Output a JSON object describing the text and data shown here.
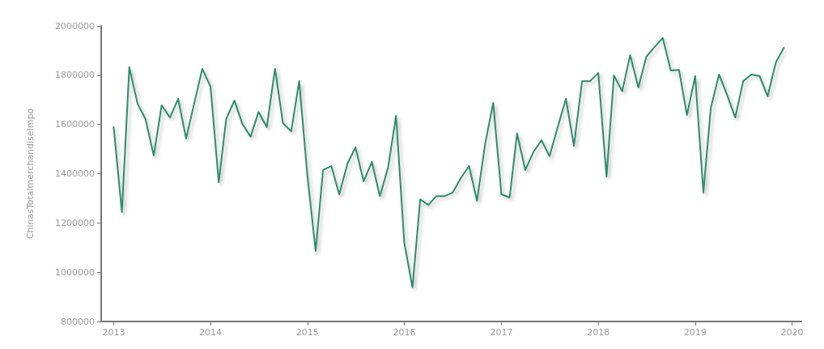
{
  "chart_data": {
    "type": "line",
    "ylabel": "ChinasTotalmerchandiseImpo",
    "x": [
      "2013-01",
      "2013-02",
      "2013-03",
      "2013-04",
      "2013-05",
      "2013-06",
      "2013-07",
      "2013-08",
      "2013-09",
      "2013-10",
      "2013-11",
      "2013-12",
      "2014-01",
      "2014-02",
      "2014-03",
      "2014-04",
      "2014-05",
      "2014-06",
      "2014-07",
      "2014-08",
      "2014-09",
      "2014-10",
      "2014-11",
      "2014-12",
      "2015-01",
      "2015-02",
      "2015-03",
      "2015-04",
      "2015-05",
      "2015-06",
      "2015-07",
      "2015-08",
      "2015-09",
      "2015-10",
      "2015-11",
      "2015-12",
      "2016-01",
      "2016-02",
      "2016-03",
      "2016-04",
      "2016-05",
      "2016-06",
      "2016-07",
      "2016-08",
      "2016-09",
      "2016-10",
      "2016-11",
      "2016-12",
      "2017-01",
      "2017-02",
      "2017-03",
      "2017-04",
      "2017-05",
      "2017-06",
      "2017-07",
      "2017-08",
      "2017-09",
      "2017-10",
      "2017-11",
      "2017-12",
      "2018-01",
      "2018-02",
      "2018-03",
      "2018-04",
      "2018-05",
      "2018-06",
      "2018-07",
      "2018-08",
      "2018-09",
      "2018-10",
      "2018-11",
      "2018-12",
      "2019-01",
      "2019-02",
      "2019-03",
      "2019-04",
      "2019-05",
      "2019-06",
      "2019-07",
      "2019-08",
      "2019-09",
      "2019-10",
      "2019-11",
      "2019-12"
    ],
    "series": [
      {
        "color": "#2e8b6e",
        "values": [
          1590000,
          1244000,
          1832000,
          1684000,
          1622000,
          1474000,
          1678000,
          1628000,
          1704000,
          1543000,
          1688000,
          1826000,
          1753000,
          1365000,
          1622000,
          1697000,
          1602000,
          1550000,
          1651000,
          1589000,
          1826000,
          1605000,
          1572000,
          1776000,
          1392000,
          1086000,
          1415000,
          1431000,
          1316000,
          1441000,
          1507000,
          1369000,
          1448000,
          1309000,
          1425000,
          1635000,
          1120000,
          938000,
          1296000,
          1273000,
          1309000,
          1309000,
          1323000,
          1382000,
          1431000,
          1290000,
          1523000,
          1688000,
          1316000,
          1303000,
          1563000,
          1415000,
          1487000,
          1536000,
          1471000,
          1589000,
          1704000,
          1513000,
          1776000,
          1776000,
          1809000,
          1388000,
          1799000,
          1734000,
          1882000,
          1750000,
          1875000,
          1914000,
          1951000,
          1819000,
          1822000,
          1638000,
          1796000,
          1323000,
          1668000,
          1803000,
          1720000,
          1628000,
          1776000,
          1803000,
          1796000,
          1714000,
          1852000,
          1911000
        ]
      }
    ],
    "xlim": [
      "2012-11-15",
      "2020-02-05"
    ],
    "xticks": [
      "2013",
      "2014",
      "2015",
      "2016",
      "2017",
      "2018",
      "2019",
      "2020"
    ],
    "ylim": [
      800000,
      2000000
    ],
    "yticks": [
      800000,
      1000000,
      1200000,
      1400000,
      1600000,
      1800000,
      2000000
    ],
    "grid": false,
    "marker": "none",
    "line_style": "solid"
  }
}
